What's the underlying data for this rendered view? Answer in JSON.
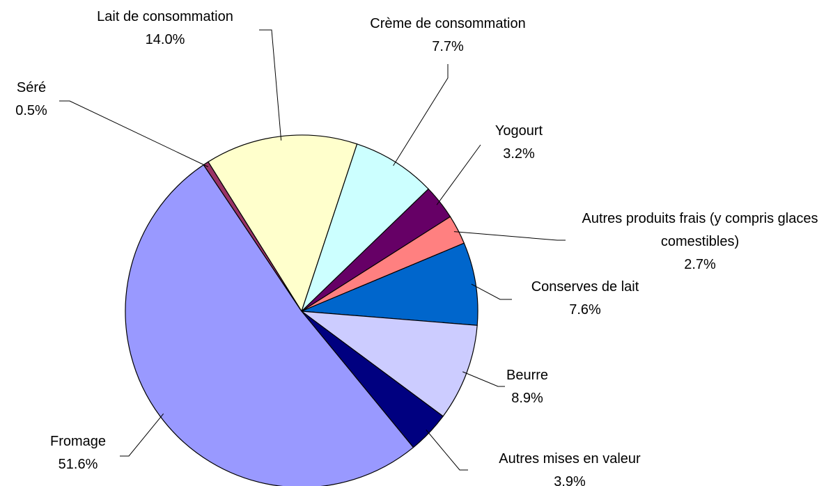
{
  "chart_data": {
    "type": "pie",
    "categories": [
      "Lait de consommation",
      "Crème de consommation",
      "Yogourt",
      "Autres produits frais (y compris glaces comestibles)",
      "Conserves de lait",
      "Beurre",
      "Autres mises en valeur",
      "Fromage",
      "Séré"
    ],
    "values": [
      14.0,
      7.7,
      3.2,
      2.7,
      7.6,
      8.9,
      3.9,
      51.6,
      0.5
    ],
    "value_labels": [
      "14.0%",
      "7.7%",
      "3.2%",
      "2.7%",
      "7.6%",
      "8.9%",
      "3.9%",
      "51.6%",
      "0.5%"
    ],
    "colors": [
      "#ffffcc",
      "#ccffff",
      "#660066",
      "#ff8080",
      "#0066cc",
      "#ccccff",
      "#000080",
      "#9999ff",
      "#993366"
    ]
  }
}
